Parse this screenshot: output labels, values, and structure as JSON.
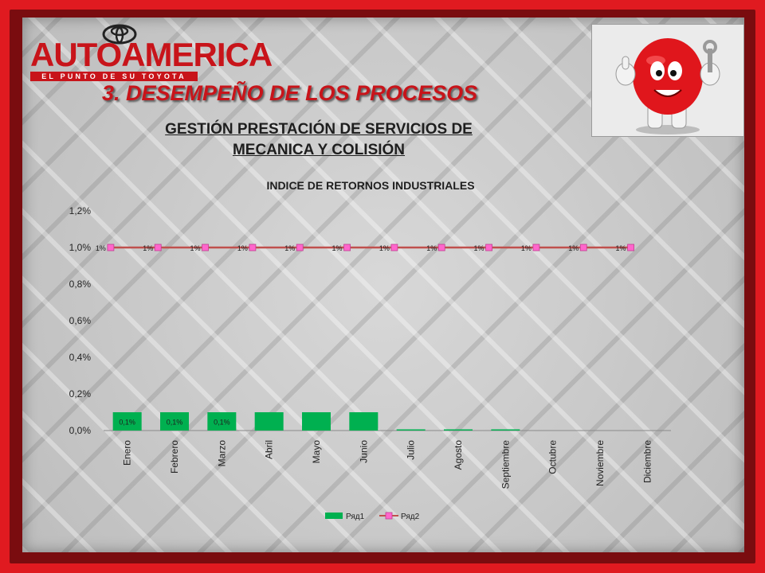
{
  "header": {
    "logo_brand": "AUTOAMERICA",
    "logo_tagline": "EL PUNTO DE SU TOYOTA",
    "title": "3. DESEMPEÑO DE LOS PROCESOS",
    "subtitle_line1": "GESTIÓN PRESTACIÓN DE SERVICIOS DE",
    "subtitle_line2": "MECANICA Y COLISIÓN"
  },
  "colors": {
    "frame": "#e01a20",
    "title_red": "#c8141a",
    "bar_green": "#00b050",
    "line_red": "#c0504d",
    "marker_pink": "#ff66cc"
  },
  "chart_data": {
    "type": "bar",
    "title": "INDICE DE RETORNOS INDUSTRIALES",
    "categories": [
      "Enero",
      "Febrero",
      "Marzo",
      "Abril",
      "Mayo",
      "Junio",
      "Julio",
      "Agosto",
      "Septiembre",
      "Octubre",
      "Noviembre",
      "Diciembre"
    ],
    "ylim": [
      0,
      1.2
    ],
    "yticks": [
      "0,0%",
      "0,2%",
      "0,4%",
      "0,6%",
      "0,8%",
      "1,0%",
      "1,2%"
    ],
    "grid": false,
    "legend_position": "bottom",
    "series": [
      {
        "name": "Ряд1",
        "kind": "bar",
        "values": [
          0.1,
          0.1,
          0.1,
          0.1,
          0.1,
          0.1,
          0.005,
          0.005,
          0.005,
          0,
          0,
          0
        ],
        "labels": [
          "0,1%",
          "0,1%",
          "0,1%",
          "",
          "",
          "",
          "",
          "",
          "",
          "",
          "",
          ""
        ]
      },
      {
        "name": "Ряд2",
        "kind": "line",
        "values": [
          1,
          1,
          1,
          1,
          1,
          1,
          1,
          1,
          1,
          1,
          1,
          1
        ],
        "labels": [
          "1%",
          "1%",
          "1%",
          "1%",
          "1%",
          "1%",
          "1%",
          "1%",
          "1%",
          "1%",
          "1%",
          "1%"
        ]
      }
    ]
  }
}
